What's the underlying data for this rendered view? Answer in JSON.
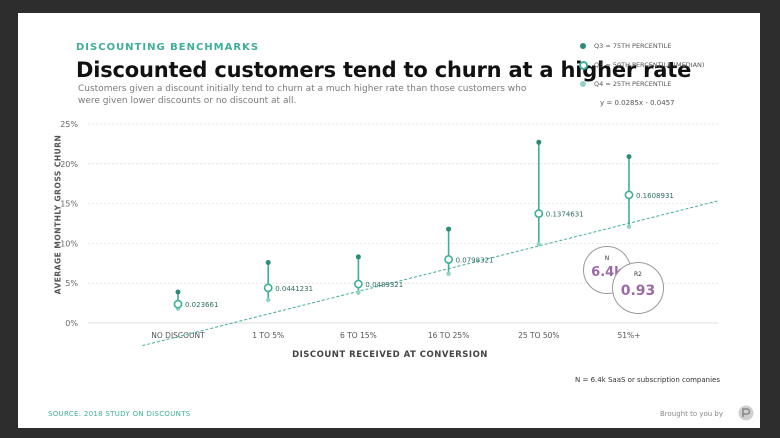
{
  "header": {
    "eyebrow": "DISCOUNTING BENCHMARKS",
    "title": "Discounted customers tend to churn at a higher rate",
    "subtitle": "Customers  given a discount initially tend to churn at a much higher rate than those customers who were given lower discounts or no discount at all."
  },
  "legend": {
    "q3": "Q3 = 75TH PERCENTILE",
    "median": "Q3 = 50TH PERCENTILE (MEDIAN)",
    "q4": "Q4 = 25TH PERCENTILE",
    "equation": "y = 0.0285x - 0.0457"
  },
  "stats": {
    "n_label": "N",
    "n_value": "6.4k",
    "r2_label": "R2",
    "r2_value": "0.93"
  },
  "footer": {
    "note": "N = 6.4k SaaS or subscription companies",
    "source": "SOURCE: 2018 STUDY ON DISCOUNTS",
    "brought_by": "Brought to you by"
  },
  "colors": {
    "accent": "#3fae9a",
    "dark": "#2e8a76",
    "light": "#8fd3c4",
    "bubble_text": "#9a6aa8"
  },
  "chart_data": {
    "type": "scatter",
    "xlabel": "DISCOUNT RECEIVED AT CONVERSION",
    "ylabel": "AVERAGE MONTHLY GROSS CHURN",
    "categories": [
      "NO DISCOUNT",
      "1 TO 5%",
      "6 TO 15%",
      "16 TO 25%",
      "25 TO 50%",
      "51%+"
    ],
    "y_ticks": [
      "0%",
      "5%",
      "10%",
      "15%",
      "20%",
      "25%"
    ],
    "ylim": [
      0,
      0.25
    ],
    "grid": true,
    "series": [
      {
        "name": "Q3 = 75TH PERCENTILE",
        "values": [
          0.039,
          0.076,
          0.083,
          0.118,
          0.227,
          0.209
        ]
      },
      {
        "name": "Q3 = 50TH PERCENTILE (MEDIAN)",
        "values": [
          0.023661,
          0.0441231,
          0.0489321,
          0.0798321,
          0.1374631,
          0.1608931
        ]
      },
      {
        "name": "Q4 = 25TH PERCENTILE",
        "values": [
          0.018,
          0.029,
          0.038,
          0.062,
          0.099,
          0.121
        ]
      }
    ],
    "data_labels": [
      "0.023661",
      "0.0441231",
      "0.0489321",
      "0.0798321",
      "0.1374631",
      "0.1608931"
    ],
    "trendline": {
      "slope": 0.0285,
      "intercept": -0.0457,
      "label": "y = 0.0285x - 0.0457"
    }
  }
}
